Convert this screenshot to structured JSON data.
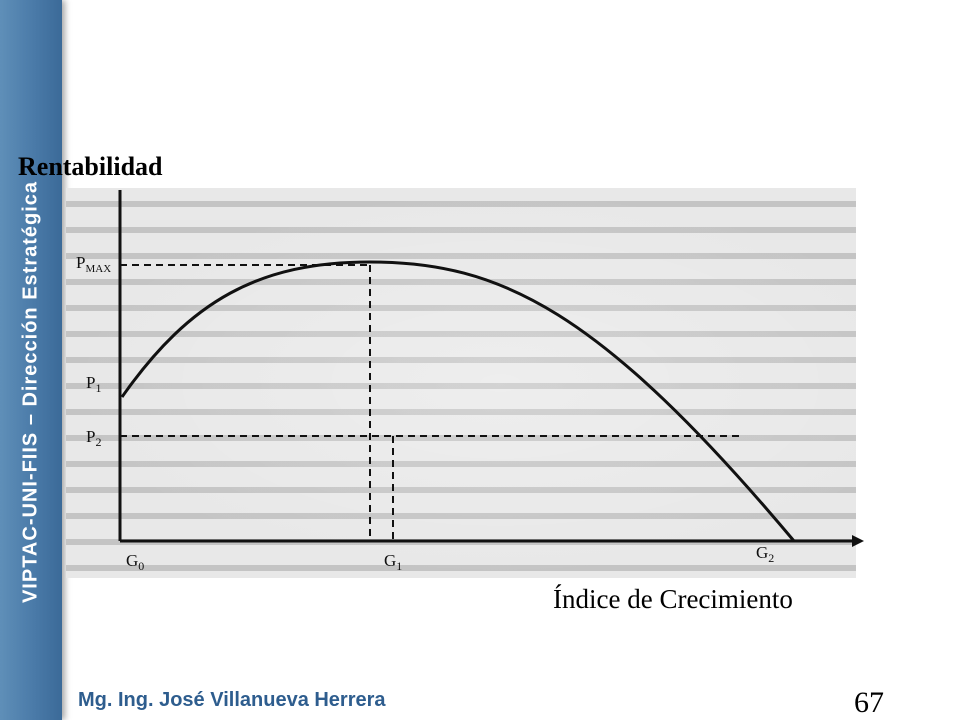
{
  "sidebar": {
    "title": "VIPTAC-UNI-FIIS – Dirección Estratégica"
  },
  "diagram": {
    "y_axis_label": "Rentabilidad",
    "x_axis_label": "Índice de Crecimiento",
    "y_markers": [
      "P MAX",
      "P1",
      "P2"
    ],
    "x_markers": [
      "G0",
      "G1",
      "G2"
    ]
  },
  "footer": {
    "author": "Mg. Ing. José Villanueva Herrera",
    "page_number": "67"
  },
  "colors": {
    "sidebar": "#4a7aa8",
    "author_text": "#2e5d8e"
  }
}
